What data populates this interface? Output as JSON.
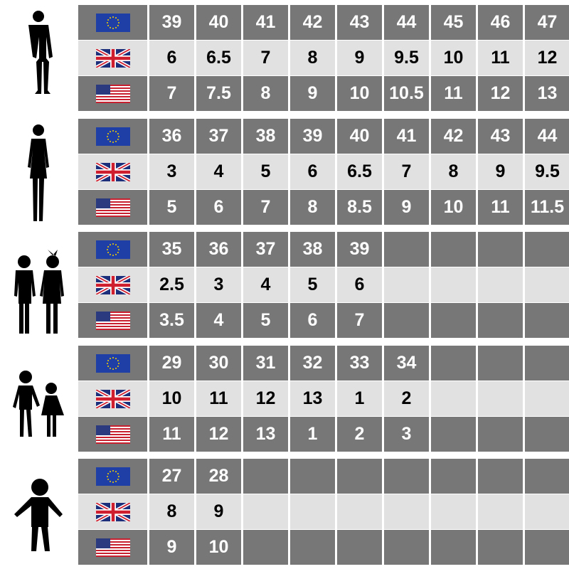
{
  "colors": {
    "dark_row": "#777777",
    "light_row": "#e1e1e1"
  },
  "row_flags": [
    "eu-flag-icon",
    "uk-flag-icon",
    "us-flag-icon"
  ],
  "groups": [
    {
      "figure": "man-silhouette-icon",
      "eu": [
        "39",
        "40",
        "41",
        "42",
        "43",
        "44",
        "45",
        "46",
        "47"
      ],
      "uk": [
        "6",
        "6.5",
        "7",
        "8",
        "9",
        "9.5",
        "10",
        "11",
        "12"
      ],
      "us": [
        "7",
        "7.5",
        "8",
        "9",
        "10",
        "10.5",
        "11",
        "12",
        "13"
      ]
    },
    {
      "figure": "woman-silhouette-icon",
      "eu": [
        "36",
        "37",
        "38",
        "39",
        "40",
        "41",
        "42",
        "43",
        "44"
      ],
      "uk": [
        "3",
        "4",
        "5",
        "6",
        "6.5",
        "7",
        "8",
        "9",
        "9.5"
      ],
      "us": [
        "5",
        "6",
        "7",
        "8",
        "8.5",
        "9",
        "10",
        "11",
        "11.5"
      ]
    },
    {
      "figure": "teens-silhouette-icon",
      "eu": [
        "35",
        "36",
        "37",
        "38",
        "39",
        "",
        "",
        "",
        ""
      ],
      "uk": [
        "2.5",
        "3",
        "4",
        "5",
        "6",
        "",
        "",
        "",
        ""
      ],
      "us": [
        "3.5",
        "4",
        "5",
        "6",
        "7",
        "",
        "",
        "",
        ""
      ]
    },
    {
      "figure": "children-silhouette-icon",
      "eu": [
        "29",
        "30",
        "31",
        "32",
        "33",
        "34",
        "",
        "",
        ""
      ],
      "uk": [
        "10",
        "11",
        "12",
        "13",
        "1",
        "2",
        "",
        "",
        ""
      ],
      "us": [
        "11",
        "12",
        "13",
        "1",
        "2",
        "3",
        "",
        "",
        ""
      ]
    },
    {
      "figure": "toddler-silhouette-icon",
      "eu": [
        "27",
        "28",
        "",
        "",
        "",
        "",
        "",
        "",
        ""
      ],
      "uk": [
        "8",
        "9",
        "",
        "",
        "",
        "",
        "",
        "",
        ""
      ],
      "us": [
        "9",
        "10",
        "",
        "",
        "",
        "",
        "",
        "",
        ""
      ]
    }
  ]
}
